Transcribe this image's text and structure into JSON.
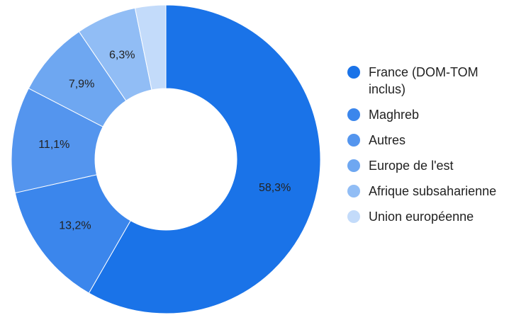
{
  "chart_data": {
    "type": "donut",
    "categories": [
      "France (DOM-TOM inclus)",
      "Maghreb",
      "Autres",
      "Europe de l'est",
      "Afrique subsaharienne",
      "Union européenne"
    ],
    "values": [
      58.3,
      13.2,
      11.1,
      7.9,
      6.3,
      3.2
    ],
    "value_labels": [
      "58,3%",
      "13,2%",
      "11,1%",
      "7,9%",
      "6,3%",
      null
    ],
    "colors": [
      "#1a73e8",
      "#3b86ec",
      "#5495ee",
      "#6ea7f1",
      "#91bdf5",
      "#c3dbfa"
    ],
    "legend": "right"
  }
}
